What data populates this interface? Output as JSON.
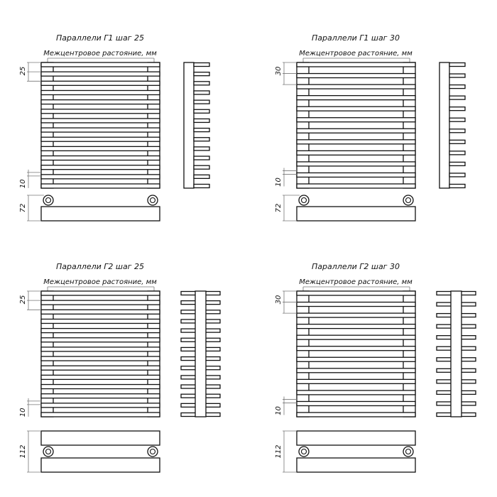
{
  "panels": [
    {
      "title": "Параллели Г1 шаг 25",
      "subtitle": "Межцентровое растояние, мм",
      "pitch_label": "25",
      "gap_label": "10",
      "depth_label": "72",
      "type": "G1",
      "bars": 14
    },
    {
      "title": "Параллели Г1 шаг 30",
      "subtitle": "Межцентровое растояние, мм",
      "pitch_label": "30",
      "gap_label": "10",
      "depth_label": "72",
      "type": "G1",
      "bars": 12
    },
    {
      "title": "Параллели Г2 шаг 25",
      "subtitle": "Межцентровое растояние, мм",
      "pitch_label": "25",
      "gap_label": "10",
      "depth_label": "112",
      "type": "G2",
      "bars": 14
    },
    {
      "title": "Параллели Г2 шаг 30",
      "subtitle": "Межцентровое растояние, мм",
      "pitch_label": "30",
      "gap_label": "10",
      "depth_label": "112",
      "type": "G2",
      "bars": 12
    }
  ],
  "colors": {
    "line": "#111111",
    "dim": "#777777",
    "background": "#ffffff"
  }
}
